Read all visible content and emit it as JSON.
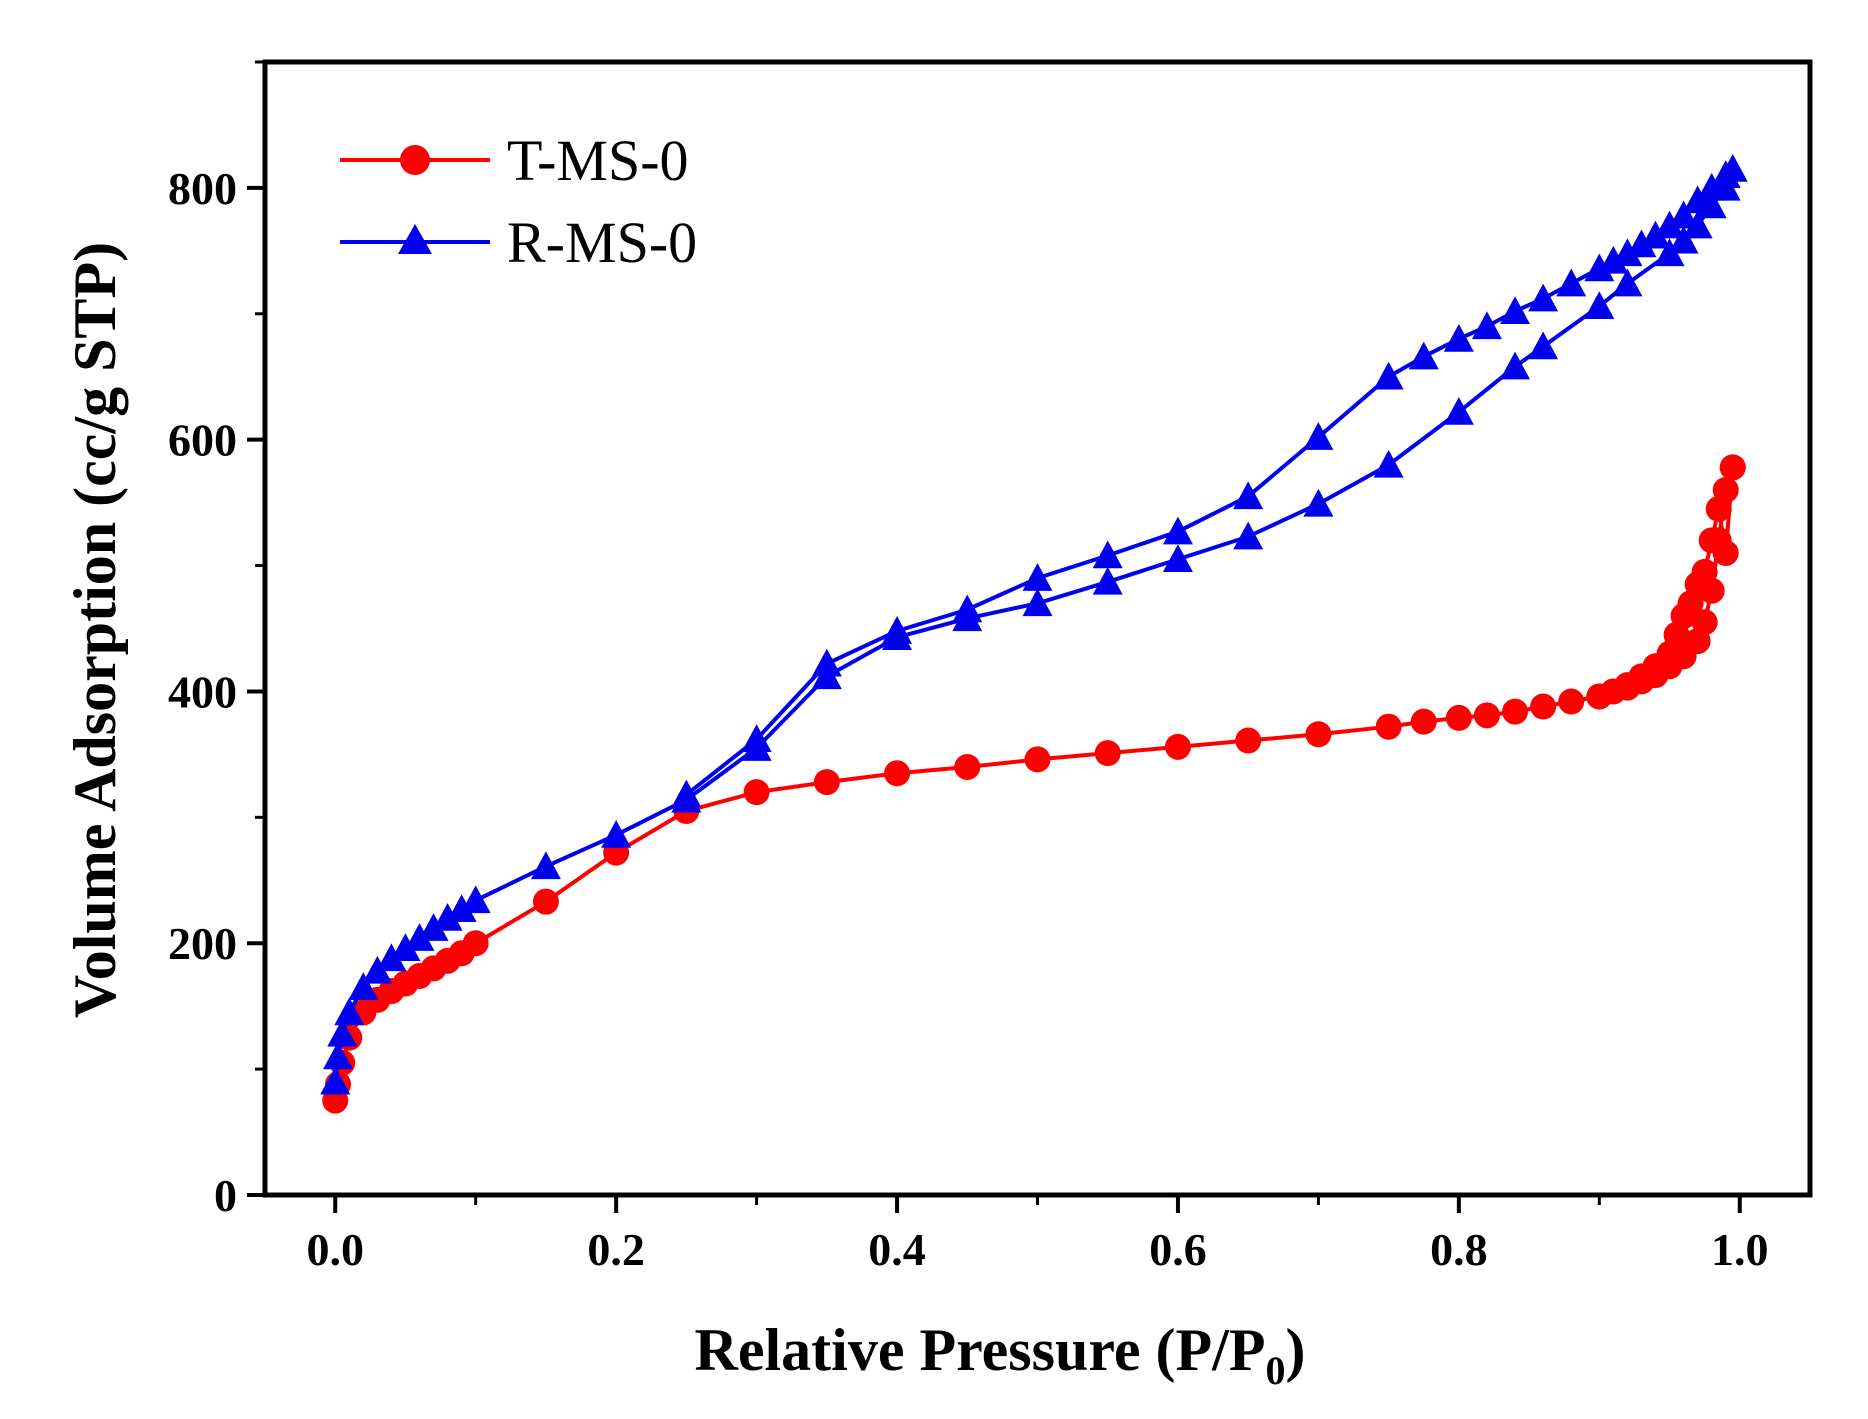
{
  "chart_data": {
    "type": "line",
    "title": "",
    "xlabel": "Relative Pressure  (P/P",
    "xlabel_sub": "0",
    "xlabel_close": ")",
    "ylabel": "Volume Adsorption  (cc/g STP)",
    "xlim": [
      -0.05,
      1.05
    ],
    "ylim": [
      0,
      900
    ],
    "xticks": [
      0.0,
      0.2,
      0.4,
      0.6,
      0.8,
      1.0
    ],
    "xtick_labels": [
      "0.0",
      "0.2",
      "0.4",
      "0.6",
      "0.8",
      "1.0"
    ],
    "yticks": [
      0,
      200,
      400,
      600,
      800
    ],
    "ytick_labels": [
      "0",
      "200",
      "400",
      "600",
      "800"
    ],
    "grid": false,
    "legend_position": "top-left",
    "series": [
      {
        "name": "T-MS-0",
        "color": "#ff0000",
        "marker": "circle",
        "adsorption": {
          "x": [
            0.0,
            0.002,
            0.005,
            0.01,
            0.02,
            0.03,
            0.04,
            0.05,
            0.06,
            0.07,
            0.08,
            0.09,
            0.1,
            0.15,
            0.2,
            0.25,
            0.3,
            0.35,
            0.4,
            0.45,
            0.5,
            0.55,
            0.6,
            0.65,
            0.7,
            0.75,
            0.775,
            0.8,
            0.82,
            0.84,
            0.86,
            0.88,
            0.9,
            0.91,
            0.92,
            0.93,
            0.94,
            0.95,
            0.96,
            0.97,
            0.975,
            0.98,
            0.985,
            0.99,
            0.995
          ],
          "y": [
            75,
            88,
            105,
            125,
            145,
            155,
            162,
            168,
            174,
            180,
            186,
            192,
            200,
            233,
            272,
            305,
            320,
            328,
            335,
            340,
            346,
            351,
            356,
            361,
            366,
            372,
            376,
            379,
            381,
            384,
            388,
            392,
            396,
            400,
            403,
            408,
            413,
            420,
            428,
            440,
            455,
            480,
            520,
            560,
            578
          ]
        },
        "desorption": {
          "x": [
            0.995,
            0.99,
            0.985,
            0.98,
            0.975,
            0.97,
            0.965,
            0.96,
            0.955,
            0.95,
            0.94,
            0.93,
            0.92,
            0.9
          ],
          "y": [
            578,
            510,
            545,
            520,
            495,
            485,
            470,
            460,
            445,
            430,
            420,
            412,
            405,
            396
          ]
        }
      },
      {
        "name": "R-MS-0",
        "color": "#0000ee",
        "marker": "triangle",
        "adsorption": {
          "x": [
            0.0,
            0.002,
            0.005,
            0.01,
            0.02,
            0.03,
            0.04,
            0.05,
            0.06,
            0.07,
            0.08,
            0.09,
            0.1,
            0.15,
            0.2,
            0.25,
            0.3,
            0.35,
            0.4,
            0.45,
            0.5,
            0.55,
            0.6,
            0.65,
            0.7,
            0.75,
            0.8,
            0.84,
            0.86,
            0.9,
            0.92,
            0.95,
            0.96,
            0.97,
            0.98,
            0.99
          ],
          "y": [
            90,
            110,
            128,
            145,
            165,
            178,
            188,
            196,
            204,
            212,
            220,
            227,
            234,
            261,
            286,
            314,
            355,
            412,
            443,
            458,
            470,
            487,
            505,
            523,
            549,
            580,
            622,
            658,
            674,
            706,
            724,
            748,
            758,
            770,
            786,
            800
          ]
        },
        "desorption": {
          "x": [
            0.995,
            0.99,
            0.98,
            0.97,
            0.96,
            0.95,
            0.94,
            0.93,
            0.92,
            0.91,
            0.9,
            0.88,
            0.86,
            0.84,
            0.82,
            0.8,
            0.775,
            0.75,
            0.7,
            0.65,
            0.6,
            0.55,
            0.5,
            0.45,
            0.4,
            0.35,
            0.3,
            0.25
          ],
          "y": [
            815,
            810,
            800,
            790,
            778,
            770,
            762,
            755,
            748,
            742,
            736,
            724,
            712,
            702,
            690,
            680,
            666,
            650,
            602,
            555,
            527,
            508,
            490,
            465,
            448,
            422,
            362,
            318
          ]
        }
      }
    ]
  }
}
